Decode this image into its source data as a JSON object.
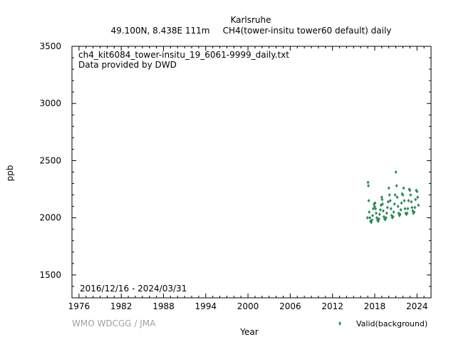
{
  "chart_data": {
    "type": "scatter",
    "title": "Karlsruhe",
    "subtitle_location": "49.100N, 8.438E 111m",
    "subtitle_dataset": "CH4(tower-insitu tower60 default) daily",
    "file_label": "ch4_kit6084_tower-insitu_19_6061-9999_daily.txt",
    "provider_label": "Data provided by DWD",
    "period_label": "2016/12/16 - 2024/03/31",
    "xlabel": "Year",
    "ylabel": "ppb",
    "credit": "WMO WDCGG / JMA",
    "xlim": [
      1975,
      2026
    ],
    "ylim": [
      1300,
      3500
    ],
    "x_ticks": [
      "1976",
      "1982",
      "1988",
      "1994",
      "2000",
      "2006",
      "2012",
      "2018",
      "2024"
    ],
    "y_ticks": [
      "1500",
      "2000",
      "2500",
      "3000",
      "3500"
    ],
    "grid": false,
    "legend_position": "bottom-right",
    "series": [
      {
        "name": "Valid(background)",
        "color": "#2e8b57",
        "marker": "diamond",
        "x": [
          2016.96,
          2017.05,
          2017.1,
          2017.15,
          2017.22,
          2017.3,
          2017.4,
          2017.5,
          2017.6,
          2017.7,
          2017.8,
          2017.9,
          2017.98,
          2018.05,
          2018.12,
          2018.2,
          2018.3,
          2018.4,
          2018.5,
          2018.6,
          2018.7,
          2018.8,
          2018.9,
          2019.0,
          2019.05,
          2019.1,
          2019.2,
          2019.3,
          2019.4,
          2019.5,
          2019.6,
          2019.7,
          2019.8,
          2019.9,
          2020.0,
          2020.1,
          2020.2,
          2020.3,
          2020.4,
          2020.5,
          2020.6,
          2020.7,
          2020.8,
          2020.9,
          2021.0,
          2021.1,
          2021.2,
          2021.3,
          2021.4,
          2021.5,
          2021.6,
          2021.7,
          2021.8,
          2021.9,
          2022.0,
          2022.1,
          2022.2,
          2022.3,
          2022.4,
          2022.5,
          2022.6,
          2022.7,
          2022.8,
          2022.9,
          2023.0,
          2023.1,
          2023.2,
          2023.3,
          2023.4,
          2023.5,
          2023.6,
          2023.7,
          2023.8,
          2023.9,
          2024.0,
          2024.1,
          2024.2
        ],
        "y": [
          2000,
          2310,
          2280,
          2150,
          2050,
          2000,
          1970,
          1960,
          1980,
          2020,
          2080,
          2120,
          2100,
          2130,
          2080,
          2040,
          2000,
          1980,
          1970,
          1990,
          2030,
          2070,
          2110,
          2180,
          2160,
          2120,
          2060,
          2010,
          1990,
          1985,
          2000,
          2040,
          2090,
          2140,
          2260,
          2200,
          2150,
          2080,
          2020,
          2000,
          2010,
          2050,
          2120,
          2200,
          2400,
          2280,
          2180,
          2100,
          2040,
          2020,
          2030,
          2070,
          2130,
          2210,
          2200,
          2260,
          2150,
          2080,
          2040,
          2030,
          2040,
          2080,
          2150,
          2250,
          2240,
          2200,
          2140,
          2090,
          2060,
          2040,
          2050,
          2090,
          2160,
          2240,
          2230,
          2180,
          2110
        ]
      }
    ]
  }
}
